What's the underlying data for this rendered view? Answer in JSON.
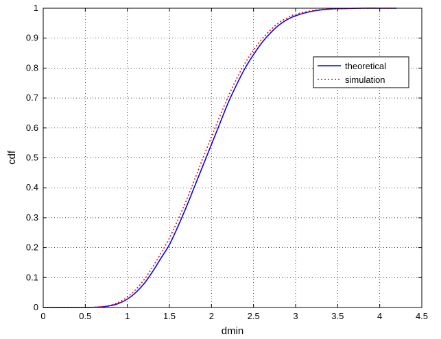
{
  "chart_data": {
    "type": "line",
    "title": "",
    "xlabel": "dmin",
    "ylabel": "cdf",
    "xlim": [
      0,
      4.5
    ],
    "ylim": [
      0,
      1
    ],
    "xticks": [
      "0",
      "0.5",
      "1",
      "1.5",
      "2",
      "2.5",
      "3",
      "3.5",
      "4",
      "4.5"
    ],
    "yticks": [
      "0",
      "0.1",
      "0.2",
      "0.3",
      "0.4",
      "0.5",
      "0.6",
      "0.7",
      "0.8",
      "0.9",
      "1"
    ],
    "grid": true,
    "legend_position": "top-right",
    "series": [
      {
        "name": "theoretical",
        "color": "#0000ff",
        "style": "solid",
        "x": [
          0,
          0.5,
          0.7,
          0.8,
          0.9,
          1.0,
          1.1,
          1.2,
          1.3,
          1.4,
          1.5,
          1.6,
          1.7,
          1.8,
          1.9,
          2.0,
          2.1,
          2.2,
          2.3,
          2.4,
          2.5,
          2.6,
          2.7,
          2.8,
          2.9,
          3.0,
          3.2,
          3.4,
          3.6,
          3.8,
          4.0,
          4.2
        ],
        "y": [
          0,
          0,
          0.002,
          0.006,
          0.014,
          0.028,
          0.05,
          0.08,
          0.12,
          0.165,
          0.21,
          0.27,
          0.335,
          0.405,
          0.475,
          0.545,
          0.615,
          0.685,
          0.745,
          0.8,
          0.845,
          0.885,
          0.917,
          0.943,
          0.962,
          0.975,
          0.99,
          0.997,
          0.999,
          1.0,
          1.0,
          1.0
        ]
      },
      {
        "name": "simulation",
        "color": "#ff0000",
        "style": "dotted",
        "x": [
          0,
          0.5,
          0.7,
          0.8,
          0.9,
          1.0,
          1.1,
          1.2,
          1.3,
          1.4,
          1.5,
          1.6,
          1.7,
          1.8,
          1.9,
          2.0,
          2.1,
          2.2,
          2.3,
          2.4,
          2.5,
          2.6,
          2.7,
          2.8,
          2.9,
          3.0,
          3.2,
          3.4,
          3.6,
          3.8,
          4.0,
          4.2
        ],
        "y": [
          0,
          0,
          0.003,
          0.008,
          0.018,
          0.035,
          0.06,
          0.093,
          0.135,
          0.182,
          0.232,
          0.292,
          0.357,
          0.428,
          0.5,
          0.57,
          0.64,
          0.705,
          0.765,
          0.817,
          0.86,
          0.897,
          0.927,
          0.951,
          0.968,
          0.98,
          0.992,
          0.998,
          0.999,
          1.0,
          1.0,
          1.0
        ]
      }
    ]
  }
}
